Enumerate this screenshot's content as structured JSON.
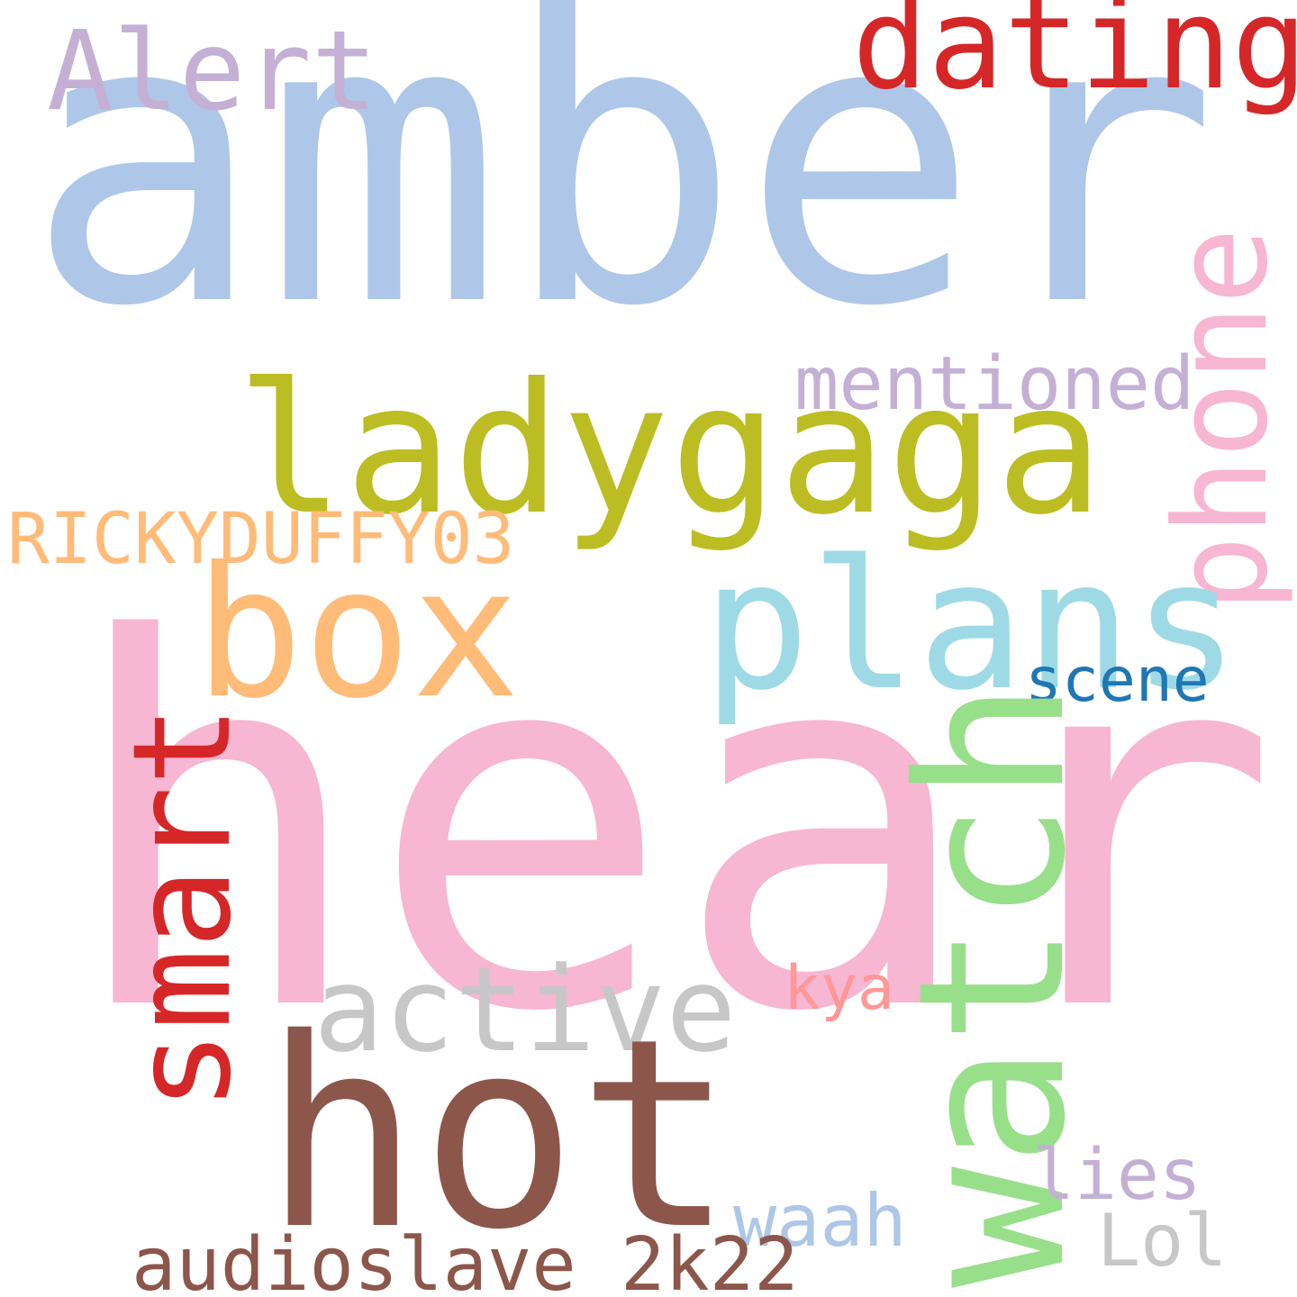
{
  "words": [
    {
      "text": "amber",
      "color": "#aec7e8"
    },
    {
      "text": "heard",
      "color": "#f7b6d2"
    },
    {
      "text": "ladygaga",
      "color": "#bcbd22"
    },
    {
      "text": "dating",
      "color": "#d62728"
    },
    {
      "text": "Alert",
      "color": "#c5b0d5"
    },
    {
      "text": "mentioned",
      "color": "#c5b0d5"
    },
    {
      "text": "phone",
      "color": "#f7b6d2"
    },
    {
      "text": "plans",
      "color": "#9edae5"
    },
    {
      "text": "box",
      "color": "#ffbb78"
    },
    {
      "text": "RICKYDUFFY03",
      "color": "#ffbb78"
    },
    {
      "text": "scene",
      "color": "#1f77b4"
    },
    {
      "text": "smart",
      "color": "#d62728"
    },
    {
      "text": "watch",
      "color": "#98df8a"
    },
    {
      "text": "active",
      "color": "#c7c7c7"
    },
    {
      "text": "kya",
      "color": "#ff9896"
    },
    {
      "text": "hot",
      "color": "#8c564b"
    },
    {
      "text": "lies",
      "color": "#c5b0d5"
    },
    {
      "text": "waah",
      "color": "#aec7e8"
    },
    {
      "text": "Lol",
      "color": "#c7c7c7"
    },
    {
      "text": "audioslave_2k22",
      "color": "#8c564b"
    }
  ]
}
